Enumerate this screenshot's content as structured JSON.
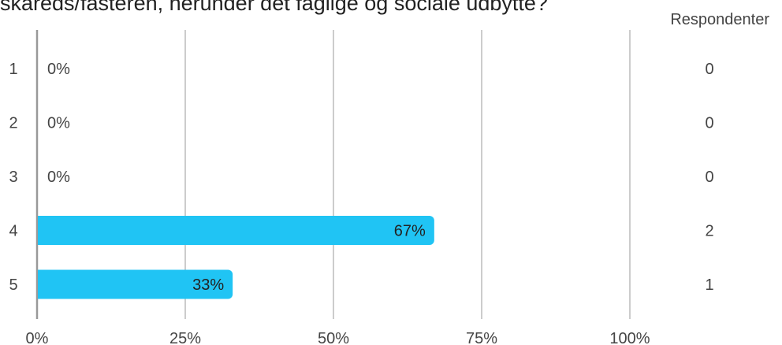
{
  "title": "skareds/fasteren, herunder det faglige og sociale udbytte?",
  "respondents_header": "Respondenter",
  "chart_data": {
    "type": "bar",
    "orientation": "horizontal",
    "categories": [
      "1",
      "2",
      "3",
      "4",
      "5"
    ],
    "values": [
      0,
      0,
      0,
      67,
      33
    ],
    "value_labels": [
      "0%",
      "0%",
      "0%",
      "67%",
      "33%"
    ],
    "counts": [
      "0",
      "0",
      "0",
      "2",
      "1"
    ],
    "xlim": [
      0,
      100
    ],
    "x_ticks": [
      "0%",
      "25%",
      "50%",
      "75%",
      "100%"
    ],
    "x_tick_values": [
      0,
      25,
      50,
      75,
      100
    ],
    "grid": true,
    "bar_color": "#20c4f4",
    "grid_color": "#999999",
    "axis_color": "#999999"
  }
}
